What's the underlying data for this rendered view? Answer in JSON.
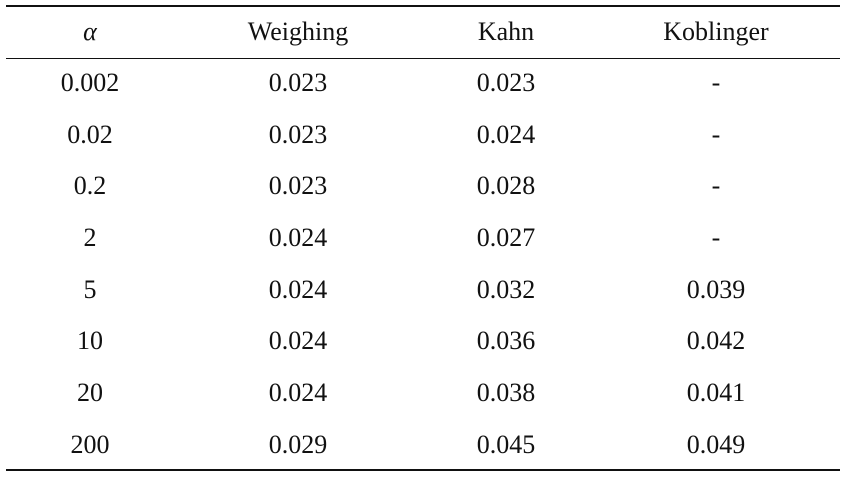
{
  "table": {
    "headers": [
      "α",
      "Weighing",
      "Kahn",
      "Koblinger"
    ],
    "rows": [
      [
        "0.002",
        "0.023",
        "0.023",
        "-"
      ],
      [
        "0.02",
        "0.023",
        "0.024",
        "-"
      ],
      [
        "0.2",
        "0.023",
        "0.028",
        "-"
      ],
      [
        "2",
        "0.024",
        "0.027",
        "-"
      ],
      [
        "5",
        "0.024",
        "0.032",
        "0.039"
      ],
      [
        "10",
        "0.024",
        "0.036",
        "0.042"
      ],
      [
        "20",
        "0.024",
        "0.038",
        "0.041"
      ],
      [
        "200",
        "0.029",
        "0.045",
        "0.049"
      ]
    ]
  }
}
